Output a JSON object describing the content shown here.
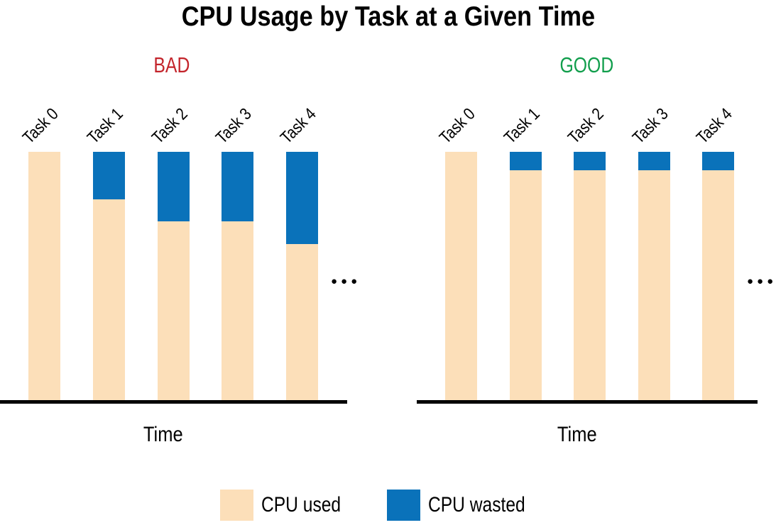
{
  "title": "CPU Usage by Task at a Given Time",
  "colors": {
    "cpu_used": "#FCDFB9",
    "cpu_wasted": "#0A72BA",
    "bad_label": "#C3242B",
    "good_label": "#119E4C",
    "axis": "#000000",
    "background": "#FFFFFF"
  },
  "legend": [
    {
      "label": "CPU used"
    },
    {
      "label": "CPU wasted"
    }
  ],
  "chart_data": [
    {
      "type": "bar",
      "stacked": true,
      "panel_label": "BAD",
      "categories": [
        "Task 0",
        "Task 1",
        "Task 2",
        "Task 3",
        "Task 4"
      ],
      "series": [
        {
          "name": "CPU used",
          "values": [
            1.0,
            0.81,
            0.72,
            0.72,
            0.63
          ]
        },
        {
          "name": "CPU wasted",
          "values": [
            0.0,
            0.19,
            0.28,
            0.28,
            0.37
          ]
        }
      ],
      "xlabel": "Time",
      "ylabel": "",
      "ylim": [
        0,
        1
      ],
      "grid": false,
      "category_label_rotation": 45,
      "ellipsis": "●●●"
    },
    {
      "type": "bar",
      "stacked": true,
      "panel_label": "GOOD",
      "categories": [
        "Task 0",
        "Task 1",
        "Task 2",
        "Task 3",
        "Task 4"
      ],
      "series": [
        {
          "name": "CPU used",
          "values": [
            1.0,
            0.925,
            0.925,
            0.925,
            0.925
          ]
        },
        {
          "name": "CPU wasted",
          "values": [
            0.0,
            0.075,
            0.075,
            0.075,
            0.075
          ]
        }
      ],
      "xlabel": "Time",
      "ylabel": "",
      "ylim": [
        0,
        1
      ],
      "grid": false,
      "category_label_rotation": 45,
      "ellipsis": "●●●"
    }
  ],
  "legend_position": "bottom"
}
